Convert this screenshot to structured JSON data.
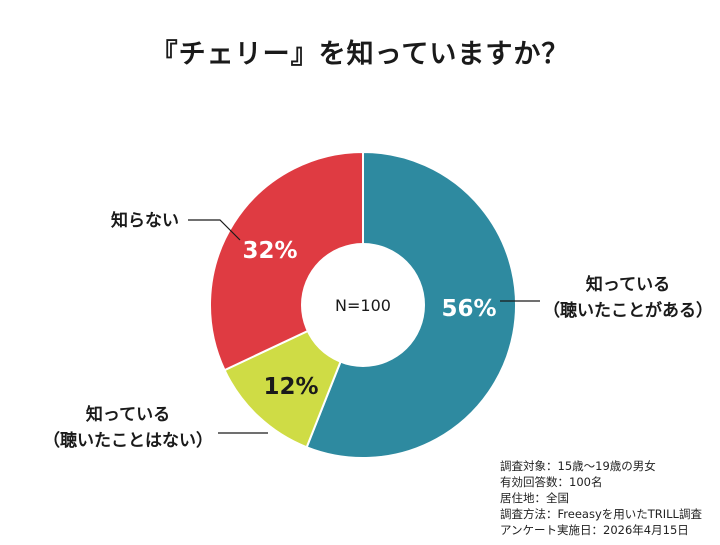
{
  "title": "『チェリー』を知っていますか？",
  "center_label": "N=100",
  "colors": {
    "know_heard": "#2e8aa0",
    "know_not_heard": "#cfdc45",
    "dont_know": "#df3b42"
  },
  "chart_data": {
    "type": "pie",
    "variant": "donut",
    "title": "『チェリー』を知っていますか？",
    "start_angle": "12 o'clock, clockwise",
    "slices": [
      {
        "label_lines": [
          "知っている",
          "（聴いたことがある）"
        ],
        "value": 56,
        "value_text": "56%",
        "color": "#2e8aa0",
        "value_text_color": "#ffffff"
      },
      {
        "label_lines": [
          "知っている",
          "（聴いたことはない）"
        ],
        "value": 12,
        "value_text": "12%",
        "color": "#cfdc45",
        "value_text_color": "#1a1a1a"
      },
      {
        "label_lines": [
          "知らない"
        ],
        "value": 32,
        "value_text": "32%",
        "color": "#df3b42",
        "value_text_color": "#ffffff"
      }
    ]
  },
  "survey_notes": [
    "調査対象：15歳〜19歳の男女",
    "有効回答数：100名",
    "居住地：全国",
    "調査方法：Freeasyを用いたTRILL調査",
    "アンケート実施日：2026年4月15日"
  ]
}
